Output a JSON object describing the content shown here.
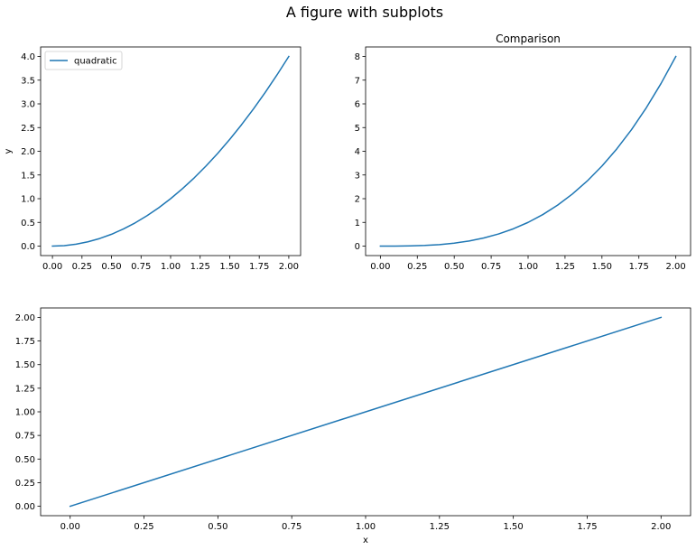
{
  "figure": {
    "suptitle": "A figure with subplots"
  },
  "colors": {
    "series": "#1f77b4",
    "spine": "#000000",
    "background": "#ffffff",
    "legend_border": "#cccccc"
  },
  "chart_data": [
    {
      "id": "quadratic",
      "type": "line",
      "title": "",
      "xlabel": "",
      "ylabel": "y",
      "xlim": [
        -0.1,
        2.1
      ],
      "ylim": [
        -0.2,
        4.2
      ],
      "xticks": [
        0,
        0.25,
        0.5,
        0.75,
        1,
        1.25,
        1.5,
        1.75,
        2
      ],
      "xticklabels": [
        "0.00",
        "0.25",
        "0.50",
        "0.75",
        "1.00",
        "1.25",
        "1.50",
        "1.75",
        "2.00"
      ],
      "yticks": [
        0,
        0.5,
        1,
        1.5,
        2,
        2.5,
        3,
        3.5,
        4
      ],
      "yticklabels": [
        "0.0",
        "0.5",
        "1.0",
        "1.5",
        "2.0",
        "2.5",
        "3.0",
        "3.5",
        "4.0"
      ],
      "grid": false,
      "legend": {
        "placement": "upper-left",
        "entries": [
          "quadratic"
        ]
      },
      "series": [
        {
          "name": "quadratic",
          "x": [
            0,
            0.1,
            0.2,
            0.3,
            0.4,
            0.5,
            0.6,
            0.7,
            0.8,
            0.9,
            1.0,
            1.1,
            1.2,
            1.3,
            1.4,
            1.5,
            1.6,
            1.7,
            1.8,
            1.9,
            2.0
          ],
          "y": [
            0,
            0.01,
            0.04,
            0.09,
            0.16,
            0.25,
            0.36,
            0.49,
            0.64,
            0.81,
            1.0,
            1.21,
            1.44,
            1.69,
            1.96,
            2.25,
            2.56,
            2.89,
            3.24,
            3.61,
            4.0
          ]
        }
      ]
    },
    {
      "id": "comparison",
      "type": "line",
      "title": "Comparison",
      "xlabel": "",
      "ylabel": "",
      "xlim": [
        -0.1,
        2.1
      ],
      "ylim": [
        -0.4,
        8.4
      ],
      "xticks": [
        0,
        0.25,
        0.5,
        0.75,
        1,
        1.25,
        1.5,
        1.75,
        2
      ],
      "xticklabels": [
        "0.00",
        "0.25",
        "0.50",
        "0.75",
        "1.00",
        "1.25",
        "1.50",
        "1.75",
        "2.00"
      ],
      "yticks": [
        0,
        1,
        2,
        3,
        4,
        5,
        6,
        7,
        8
      ],
      "yticklabels": [
        "0",
        "1",
        "2",
        "3",
        "4",
        "5",
        "6",
        "7",
        "8"
      ],
      "grid": false,
      "series": [
        {
          "x": [
            0,
            0.1,
            0.2,
            0.3,
            0.4,
            0.5,
            0.6,
            0.7,
            0.8,
            0.9,
            1.0,
            1.1,
            1.2,
            1.3,
            1.4,
            1.5,
            1.6,
            1.7,
            1.8,
            1.9,
            2.0
          ],
          "y": [
            0,
            0.001,
            0.008,
            0.027,
            0.064,
            0.125,
            0.216,
            0.343,
            0.512,
            0.729,
            1.0,
            1.331,
            1.728,
            2.197,
            2.744,
            3.375,
            4.096,
            4.913,
            5.832,
            6.859,
            8.0
          ]
        }
      ]
    },
    {
      "id": "linear",
      "type": "line",
      "title": "",
      "xlabel": "x",
      "ylabel": "",
      "xlim": [
        -0.1,
        2.1
      ],
      "ylim": [
        -0.1,
        2.1
      ],
      "xticks": [
        0,
        0.25,
        0.5,
        0.75,
        1,
        1.25,
        1.5,
        1.75,
        2
      ],
      "xticklabels": [
        "0.00",
        "0.25",
        "0.50",
        "0.75",
        "1.00",
        "1.25",
        "1.50",
        "1.75",
        "2.00"
      ],
      "yticks": [
        0,
        0.25,
        0.5,
        0.75,
        1,
        1.25,
        1.5,
        1.75,
        2
      ],
      "yticklabels": [
        "0.00",
        "0.25",
        "0.50",
        "0.75",
        "1.00",
        "1.25",
        "1.50",
        "1.75",
        "2.00"
      ],
      "grid": false,
      "series": [
        {
          "x": [
            0,
            2
          ],
          "y": [
            0,
            2
          ]
        }
      ]
    }
  ]
}
